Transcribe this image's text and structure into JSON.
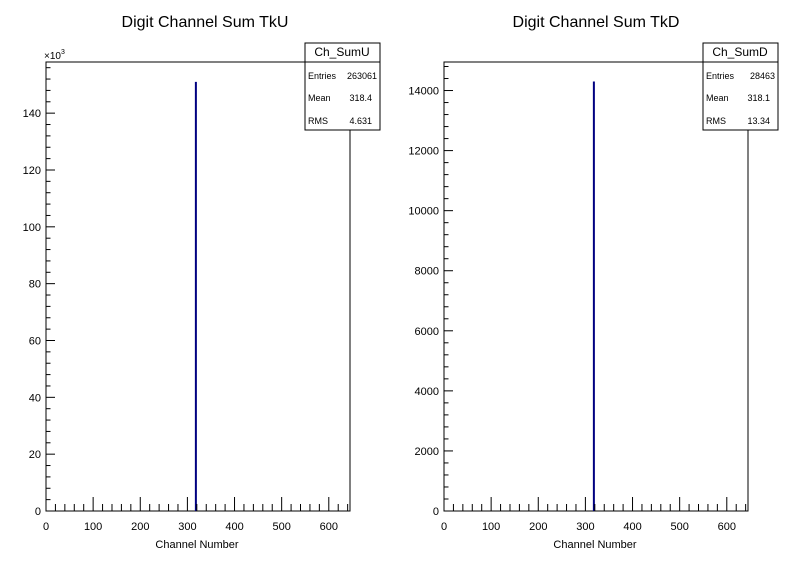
{
  "chart_data": [
    {
      "type": "histogram",
      "title": "Digit Channel Sum TkU",
      "xlabel": "Channel Number",
      "ylabel": "",
      "xlim": [
        0,
        645
      ],
      "ylim": [
        0,
        158000
      ],
      "x_ticks": [
        0,
        100,
        200,
        300,
        400,
        500,
        600
      ],
      "y_ticks": [
        0,
        20000,
        40000,
        60000,
        80000,
        100000,
        120000,
        140000
      ],
      "y_tick_labels": [
        "0",
        "20",
        "40",
        "60",
        "80",
        "100",
        "120",
        "140"
      ],
      "y_multiplier": "×10",
      "y_multiplier_exp": "3",
      "bins": [
        {
          "x": 318,
          "value": 151000
        }
      ],
      "bar_color": "#000080",
      "stats": {
        "name": "Ch_SumU",
        "rows": [
          {
            "label": "Entries",
            "value": "263061"
          },
          {
            "label": "Mean",
            "value": "318.4"
          },
          {
            "label": "RMS",
            "value": "4.631"
          }
        ]
      }
    },
    {
      "type": "histogram",
      "title": "Digit Channel Sum TkD",
      "xlabel": "Channel Number",
      "ylabel": "",
      "xlim": [
        0,
        645
      ],
      "ylim": [
        0,
        14950
      ],
      "x_ticks": [
        0,
        100,
        200,
        300,
        400,
        500,
        600
      ],
      "y_ticks": [
        0,
        2000,
        4000,
        6000,
        8000,
        10000,
        12000,
        14000
      ],
      "y_tick_labels": [
        "0",
        "2000",
        "4000",
        "6000",
        "8000",
        "10000",
        "12000",
        "14000"
      ],
      "bins": [
        {
          "x": 318,
          "value": 14300
        }
      ],
      "bar_color": "#000080",
      "stats": {
        "name": "Ch_SumD",
        "rows": [
          {
            "label": "Entries",
            "value": "28463"
          },
          {
            "label": "Mean",
            "value": "318.1"
          },
          {
            "label": "RMS",
            "value": "13.34"
          }
        ]
      }
    }
  ]
}
